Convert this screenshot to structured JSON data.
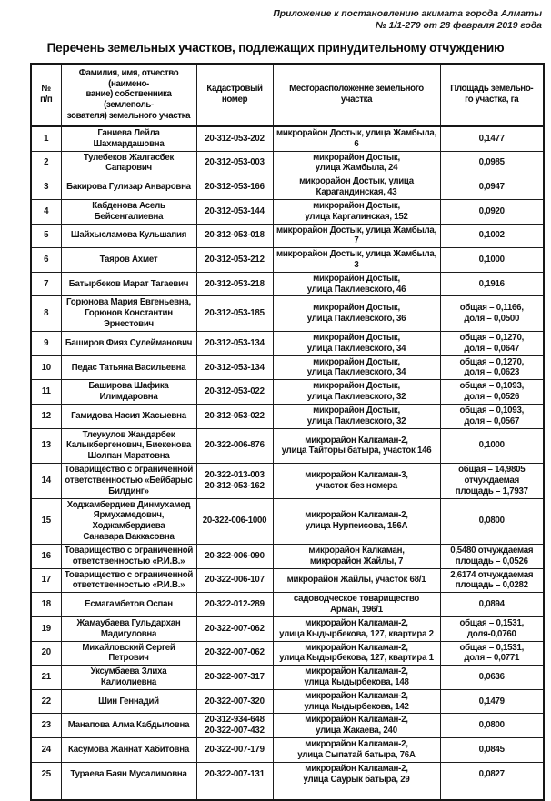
{
  "page": {
    "annotation_line1": "Приложение к постановлению акимата города Алматы",
    "annotation_line2": "№ 1/1-279 от 28 февраля 2019 года",
    "title": "Перечень земельных участков, подлежащих принудительному отчуждению"
  },
  "table": {
    "headers": {
      "num": "№\nп/п",
      "owner": "Фамилия, имя, отчество (наимено-\nвание) собственника (землеполь-\nзователя) земельного участка",
      "cadastral": "Кадастровый\nномер",
      "location": "Месторасположение земельного участка",
      "area": "Площадь земельно-\nго участка, га"
    },
    "rows": [
      {
        "num": "1",
        "owner": "Ганиева Лейла Шахмардашовна",
        "cadastral": "20-312-053-202",
        "location": "микрорайон Достык, улица Жамбыла, 6",
        "area": "0,1477"
      },
      {
        "num": "2",
        "owner": "Тулебеков Жалгасбек Сапарович",
        "cadastral": "20-312-053-003",
        "location": "микрорайон Достык,\nулица Жамбыла, 24",
        "area": "0,0985"
      },
      {
        "num": "3",
        "owner": "Бакирова Гулизар Анваровна",
        "cadastral": "20-312-053-166",
        "location": "микрорайон Достык, улица\nКарагандинская, 43",
        "area": "0,0947"
      },
      {
        "num": "4",
        "owner": "Кабденова Асель Бейсенгалиевна",
        "cadastral": "20-312-053-144",
        "location": "микрорайон Достык,\nулица Каргалинская, 152",
        "area": "0,0920"
      },
      {
        "num": "5",
        "owner": "Шайхысламова Кульшапия",
        "cadastral": "20-312-053-018",
        "location": "микрорайон Достык, улица Жамбыла, 7",
        "area": "0,1002"
      },
      {
        "num": "6",
        "owner": "Таяров Ахмет",
        "cadastral": "20-312-053-212",
        "location": "микрорайон Достык, улица Жамбыла, 3",
        "area": "0,1000"
      },
      {
        "num": "7",
        "owner": "Батырбеков Марат Тагаевич",
        "cadastral": "20-312-053-218",
        "location": "микрорайон Достык,\nулица Паклиевского, 46",
        "area": "0,1916"
      },
      {
        "num": "8",
        "owner": "Горюнова Мария Евгеньевна,\nГорюнов Константин Эрнестович",
        "cadastral": "20-312-053-185",
        "location": "микрорайон Достык,\nулица Паклиевского, 36",
        "area": "общая – 0,1166,\nдоля – 0,0500"
      },
      {
        "num": "9",
        "owner": "Баширов Фияз Сулейманович",
        "cadastral": "20-312-053-134",
        "location": "микрорайон Достык,\nулица Паклиевского, 34",
        "area": "общая – 0,1270,\nдоля – 0,0647"
      },
      {
        "num": "10",
        "owner": "Педас Татьяна Васильевна",
        "cadastral": "20-312-053-134",
        "location": "микрорайон Достык,\nулица Паклиевского, 34",
        "area": "общая – 0,1270,\nдоля – 0,0623"
      },
      {
        "num": "11",
        "owner": "Баширова Шафика Илимдаровна",
        "cadastral": "20-312-053-022",
        "location": "микрорайон Достык,\nулица Паклиевского, 32",
        "area": "общая – 0,1093,\nдоля – 0,0526"
      },
      {
        "num": "12",
        "owner": "Гамидова Насия Жасыевна",
        "cadastral": "20-312-053-022",
        "location": "микрорайон Достык,\nулица Паклиевского, 32",
        "area": "общая – 0,1093,\nдоля – 0,0567"
      },
      {
        "num": "13",
        "owner": "Тлеукулов Жандарбек\nКалыкбергенович, Биекенова\nШолпан Маратовна",
        "cadastral": "20-322-006-876",
        "location": "микрорайон Калкаман-2,\nулица Тайторы батыра, участок 146",
        "area": "0,1000"
      },
      {
        "num": "14",
        "owner": "Товарищество с ограниченной\nответственностью «Бейбарыс\nБилдинг»",
        "cadastral": "20-322-013-003\n20-312-053-162",
        "location": "микрорайон Калкаман-3,\nучасток без номера",
        "area": "общая – 14,9805\nотчуждаемая\nплощадь – 1,7937"
      },
      {
        "num": "15",
        "owner": "Ходжамбердиев Динмухамед\nЯрмухамедович, Ходжамбердиева\nСанавара Ваккасовна",
        "cadastral": "20-322-006-1000",
        "location": "микрорайон Калкаман-2,\nулица Нурпеисова, 156А",
        "area": "0,0800"
      },
      {
        "num": "16",
        "owner": "Товарищество с ограниченной\nответственностью  «Р.И.В.»",
        "cadastral": "20-322-006-090",
        "location": "микрорайон Калкаман,\nмикрорайон Жайлы, 7",
        "area": "0,5480 отчуждаемая\nплощадь – 0,0526"
      },
      {
        "num": "17",
        "owner": "Товарищество с ограниченной\nответственностью  «Р.И.В.»",
        "cadastral": "20-322-006-107",
        "location": "микрорайон Жайлы, участок 68/1",
        "area": "2,6174 отчуждаемая\nплощадь – 0,0282"
      },
      {
        "num": "18",
        "owner": "Есмагамбетов Оспан",
        "cadastral": "20-322-012-289",
        "location": "садоводческое товарищество\nАрман, 196/1",
        "area": "0,0894"
      },
      {
        "num": "19",
        "owner": "Жамаубаева Гульдархан\nМадигуловна",
        "cadastral": "20-322-007-062",
        "location": "микрорайон Калкаман-2,\nулица Кыдырбекова, 127, квартира 2",
        "area": "общая – 0,1531,\nдоля-0,0760"
      },
      {
        "num": "20",
        "owner": "Михайловский Сергей Петрович",
        "cadastral": "20-322-007-062",
        "location": "микрорайон Калкаман-2,\nулица Кыдырбекова, 127, квартира 1",
        "area": "общая – 0,1531,\nдоля – 0,0771"
      },
      {
        "num": "21",
        "owner": "Уксумбаева Злиха Калиолиевна",
        "cadastral": "20-322-007-317",
        "location": "микрорайон Калкаман-2,\nулица Кыдырбекова, 148",
        "area": "0,0636"
      },
      {
        "num": "22",
        "owner": "Шин Геннадий",
        "cadastral": "20-322-007-320",
        "location": "микрорайон Калкаман-2,\nулица Кыдырбекова, 142",
        "area": "0,1479"
      },
      {
        "num": "23",
        "owner": "Манапова Алма Кабдыловна",
        "cadastral": "20-312-934-648\n20-322-007-432",
        "location": "микрорайон Калкаман-2,\nулица Жакаева, 240",
        "area": "0,0800"
      },
      {
        "num": "24",
        "owner": "Касумова Жаннат Хабитовна",
        "cadastral": "20-322-007-179",
        "location": "микрорайон Калкаман-2,\nулица Сыпатай батыра, 76А",
        "area": "0,0845"
      },
      {
        "num": "25",
        "owner": "Тураева Баян Мусалимовна",
        "cadastral": "20-322-007-131",
        "location": "микрорайон Калкаман-2,\nулица Саурык батыра, 29",
        "area": "0,0827"
      }
    ]
  }
}
